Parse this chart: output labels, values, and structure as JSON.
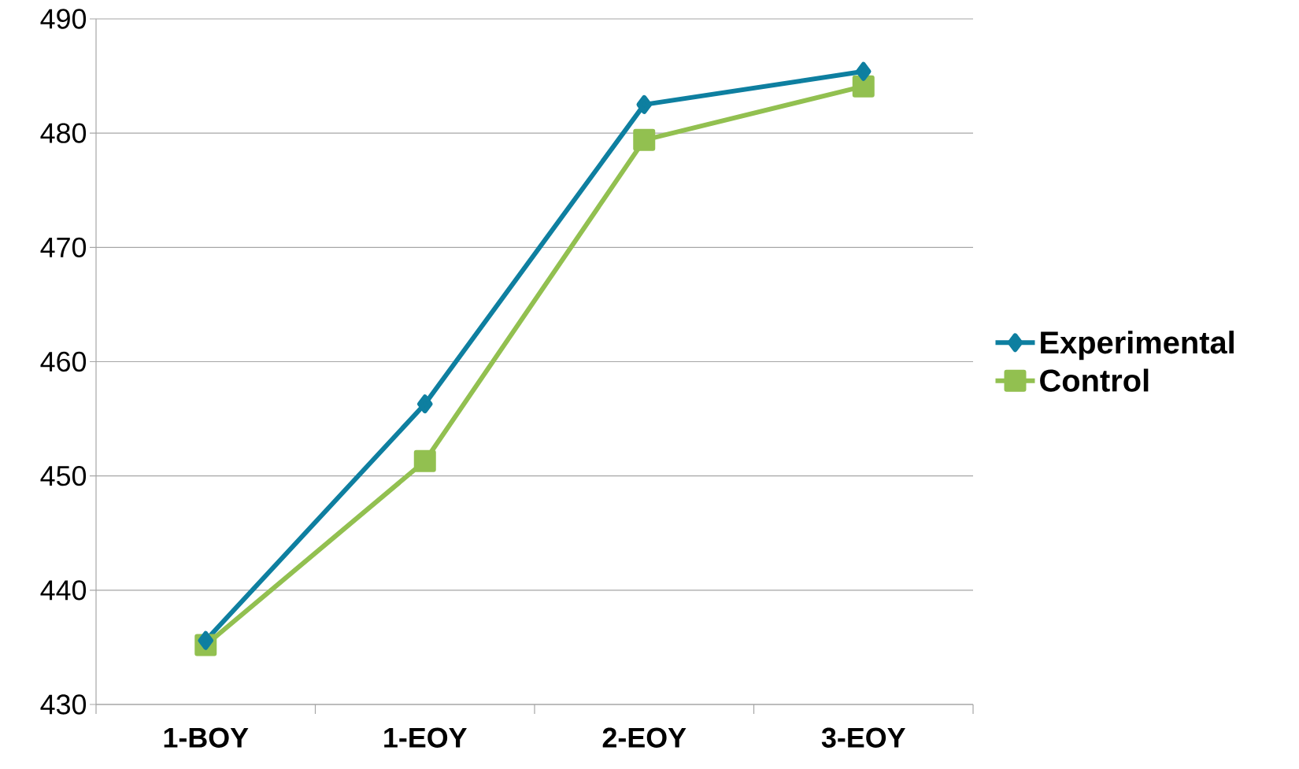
{
  "chart_data": {
    "type": "line",
    "categories": [
      "1-BOY",
      "1-EOY",
      "2-EOY",
      "3-EOY"
    ],
    "series": [
      {
        "name": "Experimental",
        "color": "#0e7fa0",
        "marker": "diamond",
        "values": [
          435.6,
          456.3,
          482.5,
          485.4
        ]
      },
      {
        "name": "Control",
        "color": "#92c050",
        "marker": "square",
        "values": [
          435.2,
          451.3,
          479.4,
          484.1
        ]
      }
    ],
    "ylim": [
      430,
      490
    ],
    "yticks": [
      430,
      440,
      450,
      460,
      470,
      480,
      490
    ],
    "grid": "y",
    "legend": "right",
    "line_style": "solid"
  }
}
